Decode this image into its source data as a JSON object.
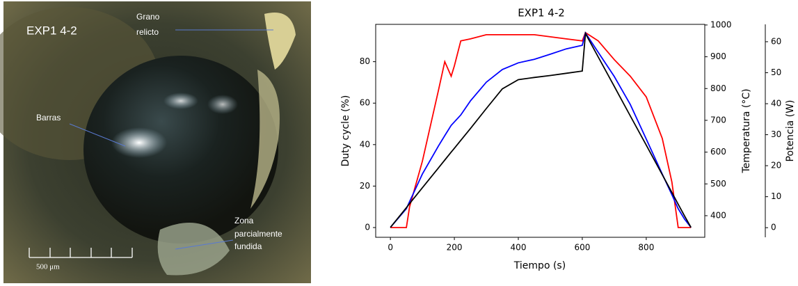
{
  "photo": {
    "title": "EXP1 4-2",
    "grain_label": [
      "Grano",
      "relicto"
    ],
    "bars_label": "Barras",
    "zone_label": [
      "Zona",
      "parcialmente",
      "fundida"
    ],
    "scale_label": "500 μm"
  },
  "chart_data": {
    "type": "line",
    "title": "EXP1 4-2",
    "x_label": "Tiempo (s)",
    "y_label": "Duty cycle (%)",
    "y2_label": "Temperatura (°C)",
    "y3_label": "Potencia (W)",
    "x": [
      0,
      50,
      60,
      100,
      150,
      170,
      190,
      200,
      220,
      250,
      300,
      350,
      400,
      450,
      500,
      550,
      600,
      610,
      650,
      700,
      750,
      800,
      850,
      880,
      900,
      920,
      940
    ],
    "series": [
      {
        "color": "#ff0000",
        "axis": "y",
        "values": [
          0,
          0,
          10,
          32,
          66,
          80,
          73,
          78,
          90,
          91,
          93,
          93,
          93,
          93,
          92,
          91,
          90,
          94,
          90,
          81,
          73,
          63,
          43,
          22,
          0,
          0,
          0
        ]
      },
      {
        "color": "#0000ff",
        "axis": "y2",
        "values": [
          363,
          422,
          444,
          531,
          619,
          652,
          684,
          695,
          717,
          761,
          820,
          860,
          881,
          892,
          908,
          925,
          936,
          975,
          914,
          838,
          750,
          641,
          531,
          466,
          422,
          389,
          363
        ]
      },
      {
        "color": "#000000",
        "axis": "y2",
        "values": [
          363,
          425,
          438,
          488,
          550,
          575,
          600,
          612,
          637,
          674,
          737,
          799,
          828,
          835,
          841,
          848,
          855,
          973,
          899,
          807,
          714,
          622,
          529,
          473,
          436,
          399,
          363
        ]
      }
    ],
    "xlim": [
      -46,
      983
    ],
    "xticks": [
      0,
      200,
      400,
      600,
      800
    ],
    "ylim": [
      -4.7,
      98
    ],
    "yticks": [
      0,
      20,
      40,
      60,
      80
    ],
    "y2lim": [
      332,
      1002
    ],
    "y2ticks": [
      400,
      500,
      600,
      700,
      800,
      900,
      1000
    ],
    "y3lim": [
      -3.1,
      65.6
    ],
    "y3ticks": [
      0,
      10,
      20,
      30,
      40,
      50,
      60
    ]
  }
}
